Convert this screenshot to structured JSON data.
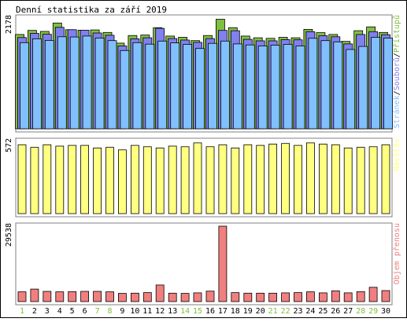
{
  "title": "Denní statistika za září 2019",
  "colors": {
    "frame": "#000000",
    "panel_border": "#808080",
    "hits": "#80c040",
    "files": "#8080f0",
    "pages": "#80c0ff",
    "visits": "#ffff80",
    "kbytes": "#f08080",
    "weekend_label": "#80c040",
    "weekday_label": "#000000"
  },
  "chart_data": [
    {
      "type": "bar",
      "title": "Denní statistika za září 2019",
      "categories": [
        "1",
        "2",
        "3",
        "4",
        "5",
        "6",
        "7",
        "8",
        "9",
        "10",
        "11",
        "12",
        "13",
        "14",
        "15",
        "16",
        "17",
        "18",
        "19",
        "20",
        "21",
        "22",
        "23",
        "24",
        "25",
        "26",
        "27",
        "28",
        "29",
        "30"
      ],
      "weekend_days": [
        "1",
        "7",
        "8",
        "14",
        "15",
        "21",
        "22",
        "28",
        "29"
      ],
      "ymax_label": "2178",
      "ylim": [
        0,
        2178
      ],
      "legend": [
        "Stránek",
        "/",
        "Souborů",
        "/",
        "Přístupů"
      ],
      "legend_placement": "right",
      "series": [
        {
          "name": "Přístupů",
          "color": "#80c040",
          "values": [
            1855,
            1935,
            1915,
            2080,
            1950,
            1940,
            1945,
            1895,
            1685,
            1835,
            1845,
            1990,
            1825,
            1800,
            1735,
            1835,
            2155,
            1990,
            1825,
            1790,
            1780,
            1800,
            1790,
            1955,
            1890,
            1855,
            1720,
            1930,
            2005,
            1895
          ]
        },
        {
          "name": "Souborů",
          "color": "#8080f0",
          "values": [
            1795,
            1875,
            1860,
            1995,
            1950,
            1940,
            1885,
            1840,
            1630,
            1770,
            1790,
            1975,
            1775,
            1745,
            1700,
            1775,
            1935,
            1930,
            1760,
            1730,
            1730,
            1755,
            1750,
            1910,
            1830,
            1810,
            1670,
            1855,
            1910,
            1850
          ]
        },
        {
          "name": "Stránek",
          "color": "#80c0ff",
          "values": [
            1695,
            1770,
            1740,
            1810,
            1805,
            1825,
            1785,
            1735,
            1540,
            1695,
            1665,
            1725,
            1690,
            1660,
            1580,
            1680,
            1725,
            1670,
            1650,
            1630,
            1645,
            1660,
            1630,
            1780,
            1735,
            1710,
            1560,
            1620,
            1800,
            1785
          ]
        }
      ]
    },
    {
      "type": "bar",
      "categories": [
        "1",
        "2",
        "3",
        "4",
        "5",
        "6",
        "7",
        "8",
        "9",
        "10",
        "11",
        "12",
        "13",
        "14",
        "15",
        "16",
        "17",
        "18",
        "19",
        "20",
        "21",
        "22",
        "23",
        "24",
        "25",
        "26",
        "27",
        "28",
        "29",
        "30"
      ],
      "ymax_label": "572",
      "ylim": [
        0,
        572
      ],
      "legend": [
        "Návštěv"
      ],
      "legend_placement": "right",
      "series": [
        {
          "name": "Návštěv",
          "color": "#ffff80",
          "values": [
            545,
            525,
            545,
            535,
            540,
            540,
            520,
            525,
            505,
            540,
            530,
            520,
            535,
            530,
            560,
            530,
            545,
            520,
            545,
            540,
            550,
            555,
            540,
            560,
            550,
            545,
            520,
            525,
            530,
            545
          ]
        }
      ]
    },
    {
      "type": "bar",
      "categories": [
        "1",
        "2",
        "3",
        "4",
        "5",
        "6",
        "7",
        "8",
        "9",
        "10",
        "11",
        "12",
        "13",
        "14",
        "15",
        "16",
        "17",
        "18",
        "19",
        "20",
        "21",
        "22",
        "23",
        "24",
        "25",
        "26",
        "27",
        "28",
        "29",
        "30"
      ],
      "ymax_label": "29538",
      "ylim": [
        0,
        29538
      ],
      "legend": [
        "Objem přenosu"
      ],
      "legend_placement": "right",
      "series": [
        {
          "name": "Objem přenosu",
          "color": "#f08080",
          "values": [
            3800,
            4900,
            4000,
            3800,
            3900,
            4000,
            4000,
            3800,
            3200,
            3300,
            3500,
            6500,
            3300,
            3200,
            3400,
            4100,
            29538,
            3500,
            3300,
            3300,
            3300,
            3400,
            3500,
            3800,
            3400,
            4200,
            3400,
            3900,
            5600,
            4300
          ]
        }
      ]
    }
  ]
}
